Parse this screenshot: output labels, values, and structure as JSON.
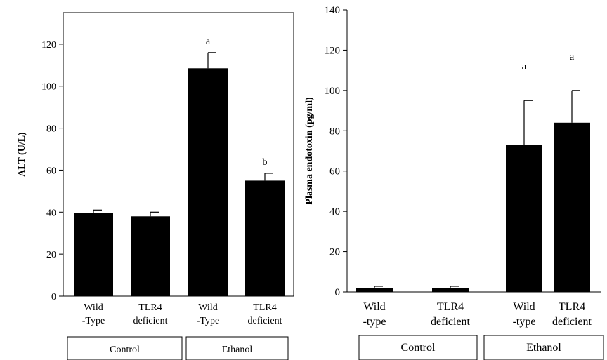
{
  "chart_data": [
    {
      "type": "bar",
      "ylabel": "ALT (U/L)",
      "ylim": [
        0,
        135
      ],
      "yticks": [
        0,
        20,
        40,
        60,
        80,
        100,
        120
      ],
      "categories": [
        [
          "Wild",
          "-Type"
        ],
        [
          "TLR4",
          "deficient"
        ],
        [
          "Wild",
          "-Type"
        ],
        [
          "TLR4",
          "deficient"
        ]
      ],
      "values": [
        39.5,
        38,
        108.5,
        55
      ],
      "errors": [
        1.5,
        2,
        7.5,
        3.5
      ],
      "annotations": [
        "",
        "",
        "a",
        "b"
      ],
      "groups": [
        {
          "label": "Control",
          "span": [
            0,
            1
          ]
        },
        {
          "label": "Ethanol",
          "span": [
            2,
            3
          ]
        }
      ],
      "bar_color": "#000000",
      "frame": "box",
      "grid": false
    },
    {
      "type": "bar",
      "ylabel": "Plasma endotoxin (pg/ml)",
      "ylim": [
        0,
        140
      ],
      "yticks": [
        0,
        20,
        40,
        60,
        80,
        100,
        120,
        140
      ],
      "categories": [
        [
          "Wild",
          "-type"
        ],
        [
          "TLR4",
          "deficient"
        ],
        [
          "Wild",
          "-type"
        ],
        [
          "TLR4",
          "deficient"
        ]
      ],
      "values": [
        2,
        2,
        73,
        84
      ],
      "errors": [
        0.8,
        0.8,
        22,
        16
      ],
      "annotations": [
        "",
        "",
        "a",
        "a"
      ],
      "groups": [
        {
          "label": "Control",
          "span": [
            0,
            1
          ]
        },
        {
          "label": "Ethanol",
          "span": [
            2,
            3
          ]
        }
      ],
      "bar_color": "#000000",
      "frame": "left-bottom",
      "grid": false
    }
  ]
}
